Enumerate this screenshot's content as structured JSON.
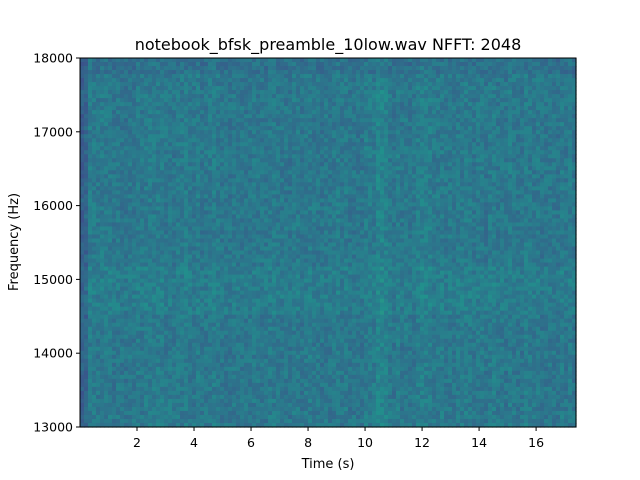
{
  "chart_data": {
    "type": "heatmap",
    "subtype": "spectrogram",
    "title": "notebook_bfsk_preamble_10low.wav  NFFT: 2048",
    "xlabel": "Time (s)",
    "ylabel": "Frequency (Hz)",
    "xlim": [
      0,
      17.4
    ],
    "ylim": [
      13000,
      18000
    ],
    "x_ticks": [
      2,
      4,
      6,
      8,
      10,
      12,
      14,
      16
    ],
    "y_ticks": [
      13000,
      14000,
      15000,
      16000,
      17000,
      18000
    ],
    "colormap": "viridis",
    "grid": false,
    "intensity_description": "roughly uniform low-to-mid intensity noise; slightly darker near t=0 and near 18000 Hz; faint vertical bands near t~2-3 s, ~10.5 s and ~12 s; faint brighter patches around 14500-15200 Hz",
    "base_color": "#2d6b8c"
  }
}
